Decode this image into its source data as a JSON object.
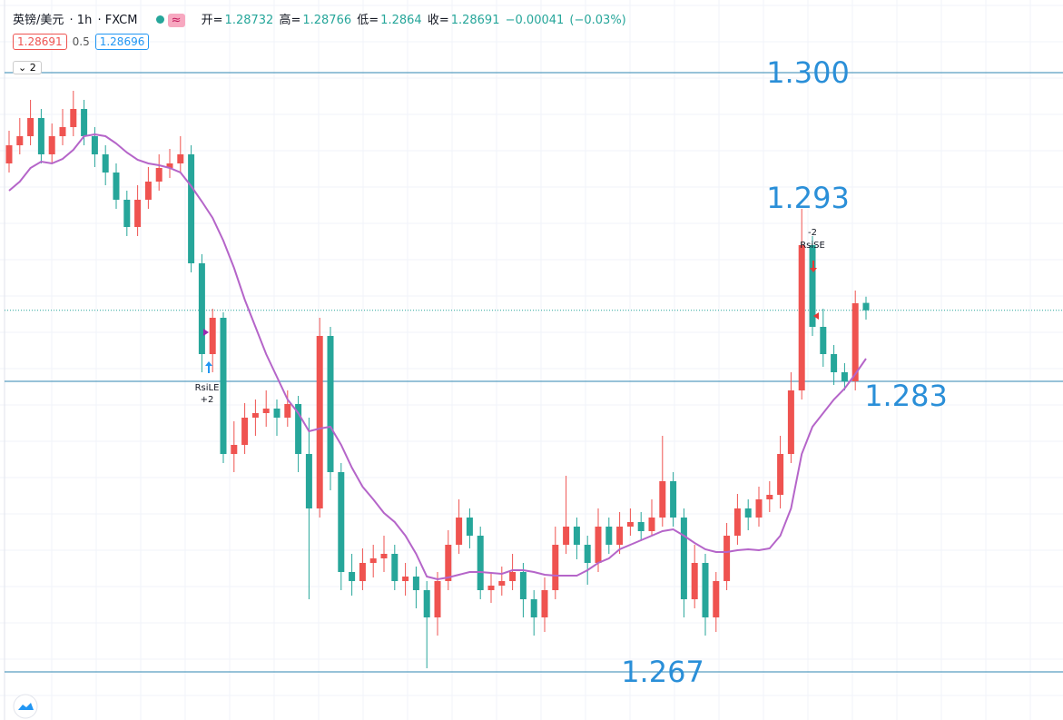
{
  "header": {
    "symbol": "英镑/美元",
    "interval": "1h",
    "source": "FXCM",
    "open_label": "开=",
    "open": 1.28732,
    "high_label": "高=",
    "high": 1.28766,
    "low_label": "低=",
    "low": 1.2864,
    "close_label": "收=",
    "close": 1.28691,
    "change": "−0.00041",
    "change_pct": "(−0.03%)",
    "bid": 1.28691,
    "spread": 0.5,
    "ask": 1.28696,
    "indicator_count": "2"
  },
  "chart_data": {
    "type": "candlestick",
    "up_color": "#ef5350",
    "down_color": "#26a69a",
    "ma_color": "#b565c9",
    "level_color": "#2f86b0",
    "label_color": "#2a8fd8",
    "ylim": [
      1.26435,
      1.304
    ],
    "candles": {
      "open": [
        1.295,
        1.296,
        1.2965,
        1.2975,
        1.2955,
        1.2965,
        1.297,
        1.298,
        1.2965,
        1.2955,
        1.2945,
        1.293,
        1.2915,
        1.293,
        1.294,
        1.29475,
        1.295,
        1.2955,
        1.2895,
        1.2845,
        1.2865,
        1.279,
        1.2795,
        1.281,
        1.28125,
        1.2815,
        1.281,
        1.28175,
        1.279,
        1.276,
        1.2855,
        1.278,
        1.2725,
        1.272,
        1.273,
        1.27325,
        1.2735,
        1.272,
        1.27225,
        1.2715,
        1.27,
        1.272,
        1.274,
        1.2755,
        1.2745,
        1.2715,
        1.27175,
        1.272,
        1.2725,
        1.271,
        1.27,
        1.2715,
        1.274,
        1.275,
        1.274,
        1.273,
        1.275,
        1.274,
        1.275,
        1.27525,
        1.27475,
        1.2755,
        1.2775,
        1.2755,
        1.271,
        1.273,
        1.27,
        1.272,
        1.2745,
        1.276,
        1.2755,
        1.2765,
        1.27675,
        1.279,
        1.2825,
        1.2905,
        1.286,
        1.2845,
        1.2835,
        1.283,
        1.28732
      ],
      "high": [
        1.2968,
        1.2975,
        1.2985,
        1.298,
        1.2972,
        1.298,
        1.299,
        1.2985,
        1.297,
        1.296,
        1.295,
        1.2935,
        1.2938,
        1.2948,
        1.2955,
        1.2958,
        1.2965,
        1.296,
        1.29,
        1.287,
        1.2868,
        1.2808,
        1.2818,
        1.282,
        1.2825,
        1.282,
        1.2825,
        1.2822,
        1.281,
        1.2865,
        1.286,
        1.2785,
        1.2735,
        1.2738,
        1.274,
        1.2745,
        1.274,
        1.273,
        1.2728,
        1.272,
        1.2725,
        1.2748,
        1.2765,
        1.276,
        1.275,
        1.2725,
        1.2728,
        1.2735,
        1.273,
        1.2715,
        1.2722,
        1.275,
        1.2778,
        1.2755,
        1.2745,
        1.276,
        1.2755,
        1.2758,
        1.276,
        1.2758,
        1.2765,
        1.28,
        1.278,
        1.276,
        1.274,
        1.2735,
        1.2725,
        1.2752,
        1.2768,
        1.2765,
        1.2772,
        1.2775,
        1.28,
        1.2835,
        1.2925,
        1.291,
        1.287,
        1.285,
        1.284,
        1.288,
        1.28766
      ],
      "low": [
        1.2945,
        1.2955,
        1.296,
        1.295,
        1.295,
        1.296,
        1.2965,
        1.296,
        1.2948,
        1.2938,
        1.2925,
        1.291,
        1.291,
        1.2925,
        1.2935,
        1.2942,
        1.2945,
        1.289,
        1.2835,
        1.2835,
        1.2785,
        1.278,
        1.279,
        1.28,
        1.2805,
        1.28,
        1.2805,
        1.278,
        1.271,
        1.2755,
        1.277,
        1.2715,
        1.2712,
        1.2715,
        1.2722,
        1.2725,
        1.2715,
        1.2712,
        1.2705,
        1.2672,
        1.269,
        1.2715,
        1.2735,
        1.2738,
        1.271,
        1.2708,
        1.2712,
        1.2715,
        1.27,
        1.269,
        1.2692,
        1.271,
        1.2735,
        1.2732,
        1.2718,
        1.2725,
        1.2735,
        1.2735,
        1.2745,
        1.2742,
        1.2745,
        1.275,
        1.275,
        1.27,
        1.2705,
        1.269,
        1.2692,
        1.2715,
        1.274,
        1.2748,
        1.275,
        1.2758,
        1.276,
        1.2785,
        1.282,
        1.2855,
        1.2838,
        1.2828,
        1.2825,
        1.2825,
        1.2864
      ],
      "close": [
        1.296,
        1.2965,
        1.2975,
        1.2955,
        1.2965,
        1.297,
        1.298,
        1.2965,
        1.2955,
        1.2945,
        1.293,
        1.2915,
        1.293,
        1.294,
        1.29475,
        1.295,
        1.2955,
        1.2895,
        1.2845,
        1.2865,
        1.279,
        1.2795,
        1.281,
        1.28125,
        1.2815,
        1.281,
        1.28175,
        1.279,
        1.276,
        1.2855,
        1.278,
        1.2725,
        1.272,
        1.273,
        1.27325,
        1.2735,
        1.272,
        1.27225,
        1.2715,
        1.27,
        1.272,
        1.274,
        1.2755,
        1.2745,
        1.2715,
        1.27175,
        1.272,
        1.2725,
        1.271,
        1.27,
        1.2715,
        1.274,
        1.275,
        1.274,
        1.273,
        1.275,
        1.274,
        1.275,
        1.27525,
        1.27475,
        1.2755,
        1.2775,
        1.2755,
        1.271,
        1.273,
        1.27,
        1.272,
        1.2745,
        1.276,
        1.2755,
        1.2765,
        1.27675,
        1.279,
        1.2825,
        1.2905,
        1.286,
        1.2845,
        1.2835,
        1.283,
        1.2873,
        1.28691
      ]
    },
    "ma": [
      1.2935,
      1.294,
      1.29475,
      1.2951,
      1.295,
      1.29525,
      1.29575,
      1.2965,
      1.2966,
      1.2965,
      1.2961,
      1.2956,
      1.2952,
      1.295,
      1.2949,
      1.29475,
      1.2945,
      1.29375,
      1.2929,
      1.292,
      1.29075,
      1.28925,
      1.2875,
      1.286,
      1.2845,
      1.28325,
      1.282,
      1.28125,
      1.28025,
      1.2804,
      1.2805,
      1.2795,
      1.27825,
      1.2772,
      1.2765,
      1.27575,
      1.27525,
      1.2745,
      1.2735,
      1.27225,
      1.2721,
      1.2722,
      1.27235,
      1.2725,
      1.2725,
      1.27245,
      1.2724,
      1.2726,
      1.2726,
      1.2725,
      1.27235,
      1.2723,
      1.2723,
      1.2723,
      1.2726,
      1.273,
      1.27325,
      1.27375,
      1.274,
      1.27425,
      1.2745,
      1.27475,
      1.27485,
      1.2745,
      1.2741,
      1.27375,
      1.2736,
      1.2736,
      1.2737,
      1.27375,
      1.2737,
      1.2738,
      1.2745,
      1.276,
      1.279,
      1.2805,
      1.28125,
      1.282,
      1.2826,
      1.2834,
      1.28425
    ],
    "last_price": 1.28691,
    "price_labels": [
      {
        "value": 1.3,
        "label": "1.300",
        "line": true
      },
      {
        "value": 1.293,
        "label": "1.293",
        "line": false
      },
      {
        "value": 1.283,
        "label": "1.283",
        "line": true
      },
      {
        "value": 1.267,
        "label": "1.267",
        "line": true
      }
    ],
    "annotations": [
      "RsiLE",
      "+2",
      "-2",
      "RsiSE"
    ]
  }
}
